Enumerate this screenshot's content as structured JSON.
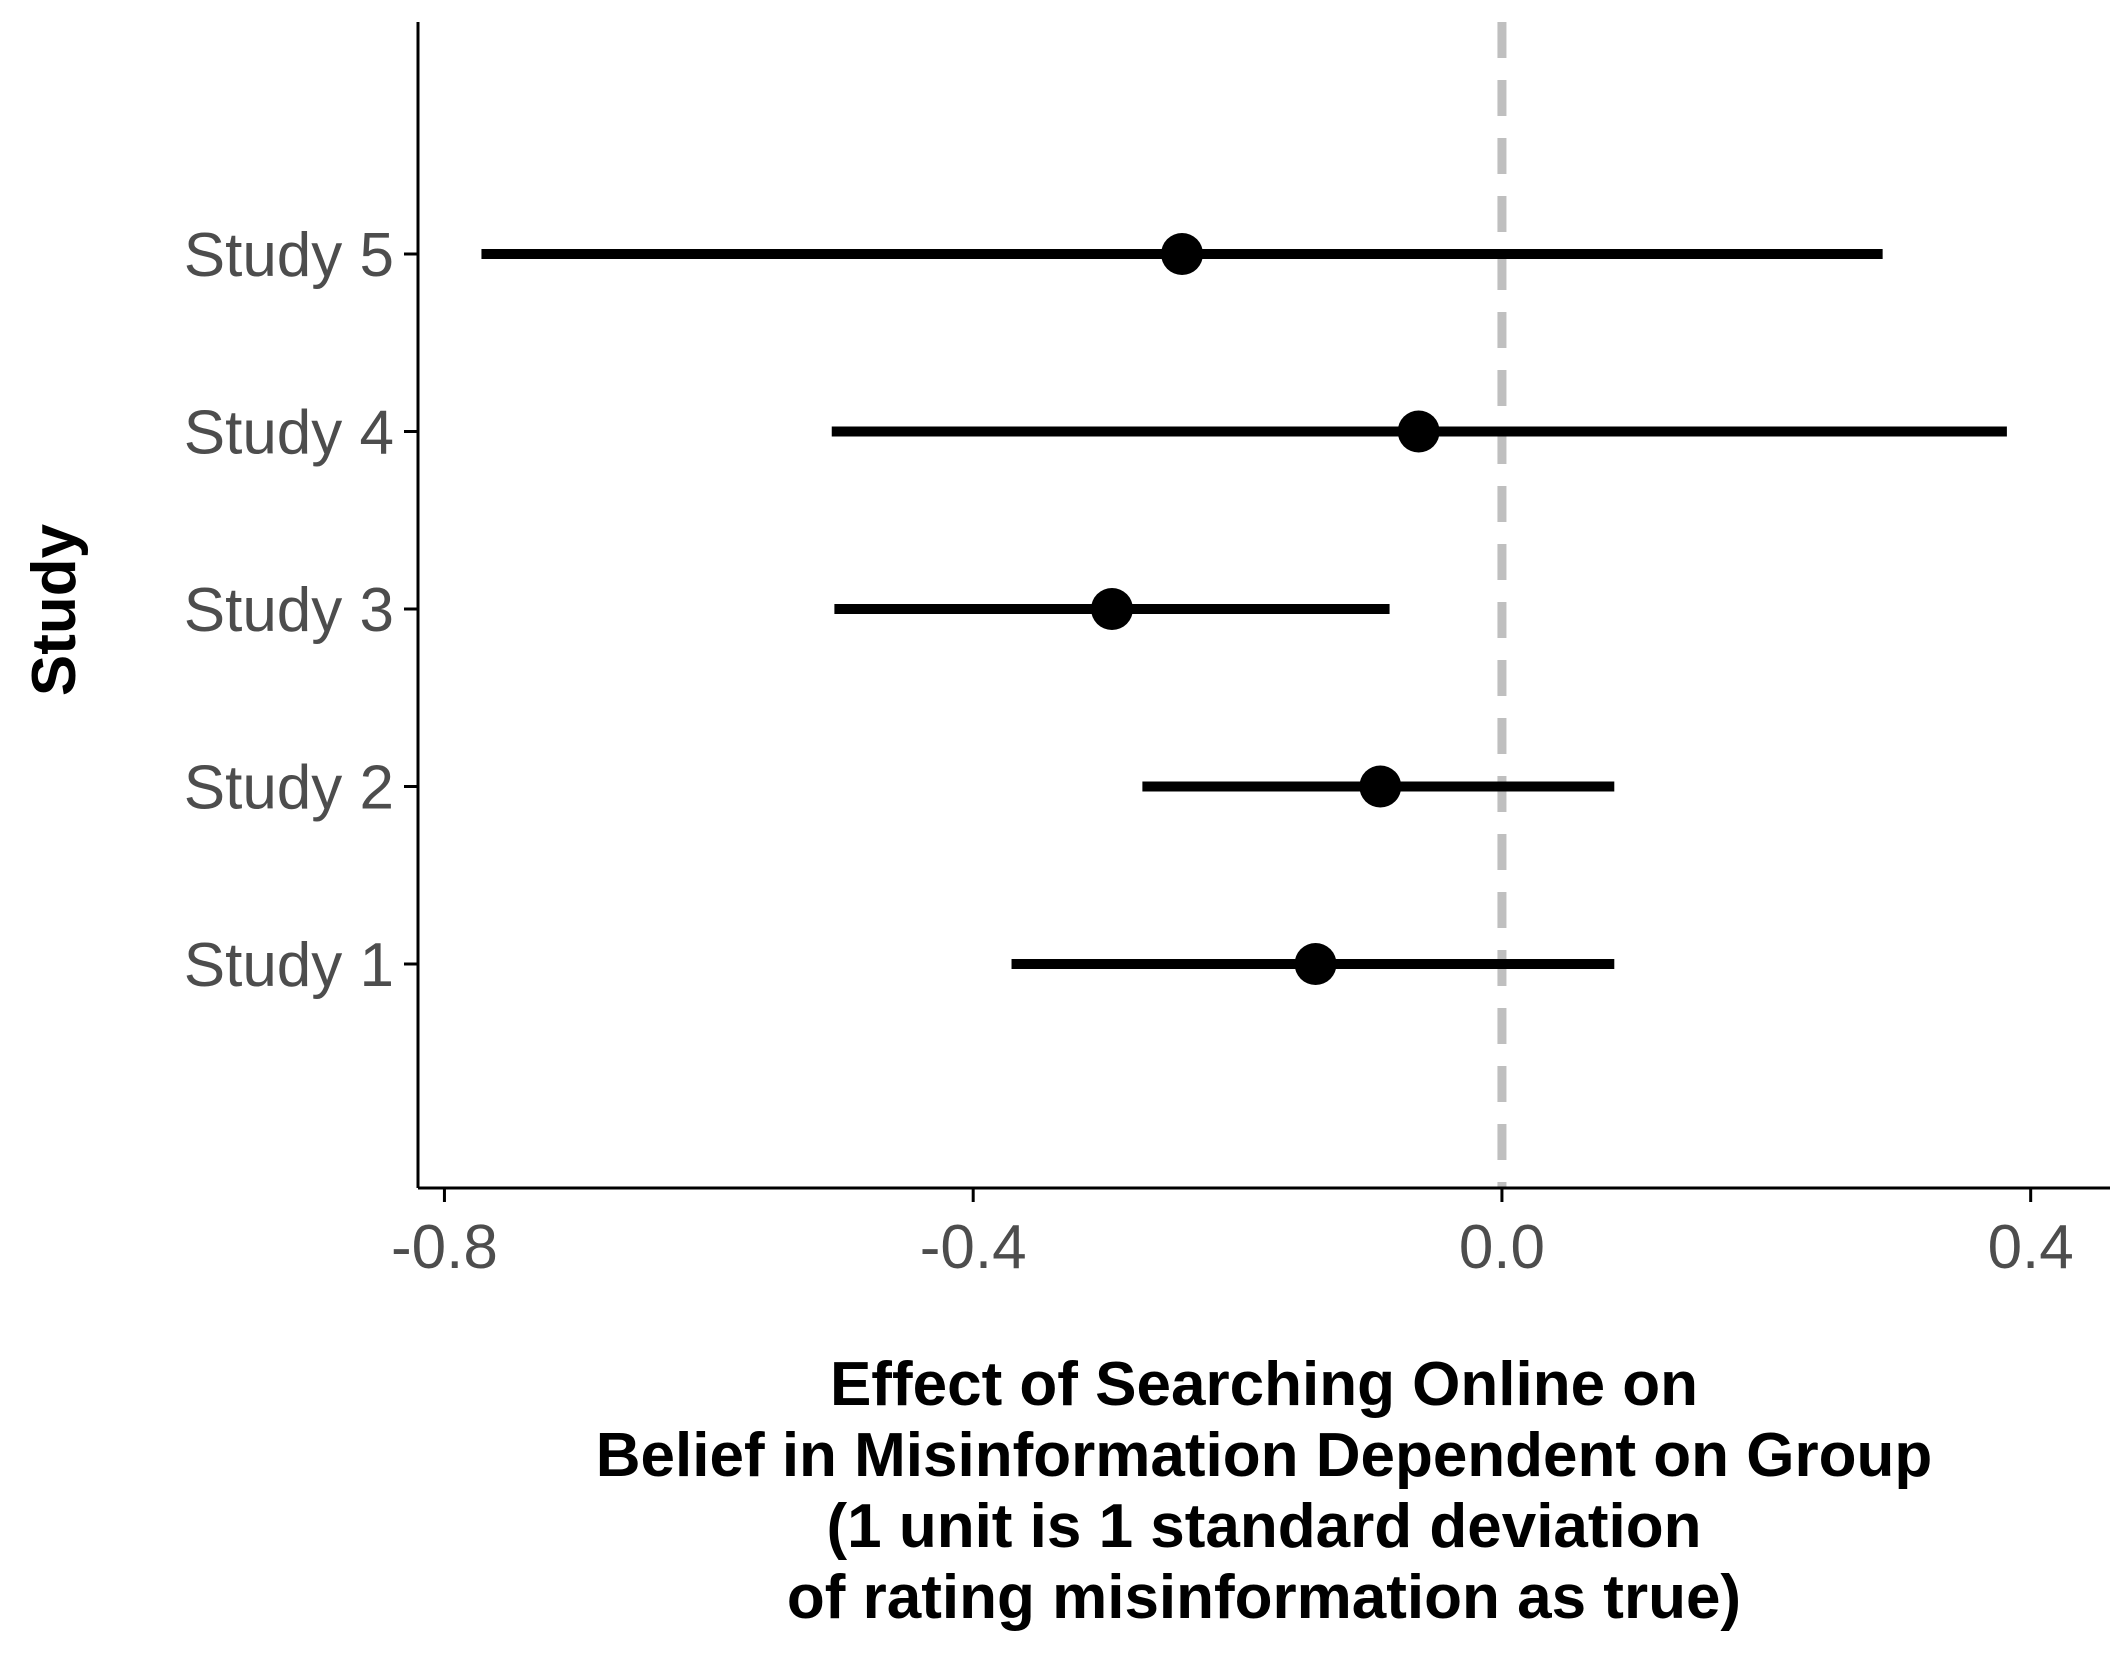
{
  "chart_data": {
    "type": "forest",
    "title": "",
    "xlabel_lines": [
      "Effect of Searching Online on",
      "Belief in Misinformation Dependent on Group",
      "(1 unit is 1 standard deviation",
      "of rating misinformation as true)"
    ],
    "ylabel": "Study",
    "xlim": [
      -0.82,
      0.46
    ],
    "x_ticks": [
      -0.8,
      -0.4,
      0.0,
      0.4
    ],
    "x_tick_labels": [
      "-0.8",
      "-0.4",
      "0.0",
      "0.4"
    ],
    "reference_line": 0.0,
    "grid": false,
    "studies": [
      {
        "label": "Study 1",
        "estimate": -0.141,
        "lower": -0.371,
        "upper": 0.085
      },
      {
        "label": "Study 2",
        "estimate": -0.092,
        "lower": -0.272,
        "upper": 0.085
      },
      {
        "label": "Study 3",
        "estimate": -0.295,
        "lower": -0.505,
        "upper": -0.085
      },
      {
        "label": "Study 4",
        "estimate": -0.063,
        "lower": -0.507,
        "upper": 0.382
      },
      {
        "label": "Study 5",
        "estimate": -0.242,
        "lower": -0.772,
        "upper": 0.288
      }
    ],
    "colors": {
      "mark": "#000000",
      "reference": "#bfbfbf",
      "tick_text": "#4d4d4d"
    }
  }
}
